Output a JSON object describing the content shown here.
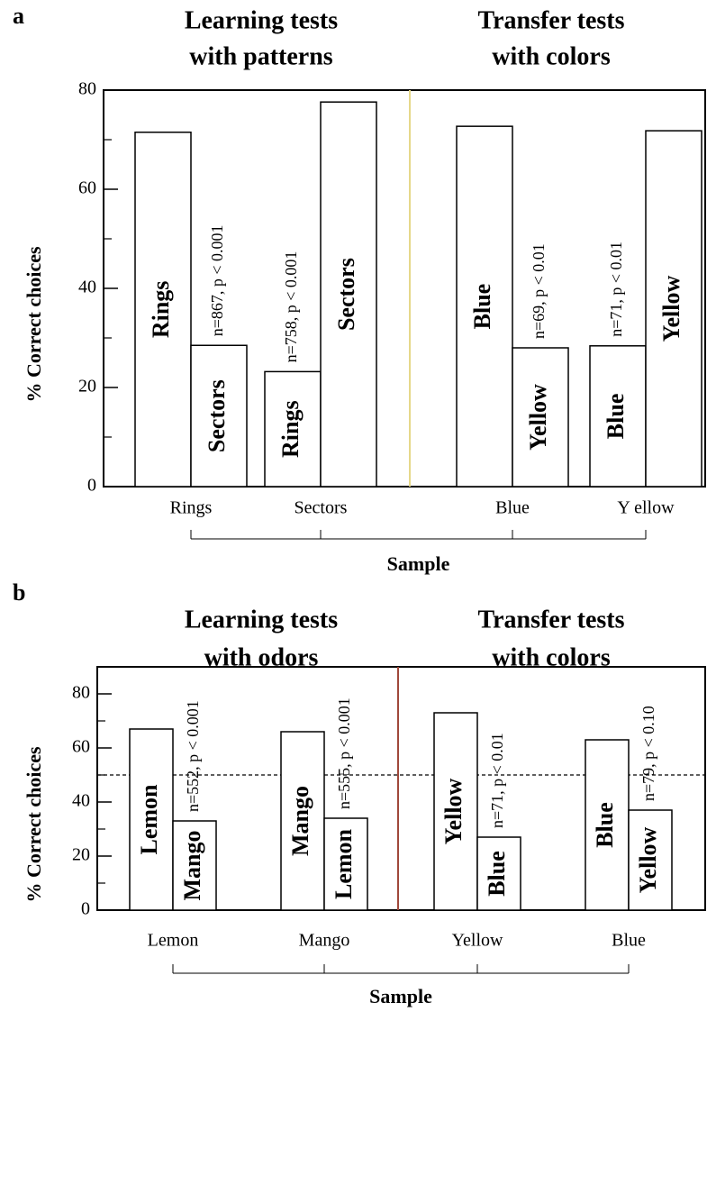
{
  "chart_data": [
    {
      "type": "bar",
      "panel": "a",
      "sections": [
        {
          "title_lines": [
            "Learning tests",
            "with patterns"
          ]
        },
        {
          "title_lines": [
            "Transfer tests",
            "with colors"
          ]
        }
      ],
      "y_label": "% Correct choices",
      "x_label": "Sample",
      "ylim": [
        0,
        80
      ],
      "yticks": [
        0,
        20,
        40,
        60,
        80
      ],
      "minor_yticks": [
        10,
        30,
        50,
        70
      ],
      "divider_color": "#e6d88a",
      "groups": [
        {
          "category": "Rings",
          "annotation": "n=867, p < 0.001",
          "bars": [
            {
              "label": "Rings",
              "value": 71.5
            },
            {
              "label": "Sectors",
              "value": 28.5
            }
          ]
        },
        {
          "category": "Sectors",
          "annotation": "n=758, p < 0.001",
          "bars": [
            {
              "label": "Rings",
              "value": 23.2
            },
            {
              "label": "Sectors",
              "value": 77.6
            }
          ]
        },
        {
          "category": "Blue",
          "annotation": "n=69, p < 0.01",
          "bars": [
            {
              "label": "Blue",
              "value": 72.7
            },
            {
              "label": "Yellow",
              "value": 28
            }
          ]
        },
        {
          "category": "Y ellow",
          "annotation": "n=71, p < 0.01",
          "bars": [
            {
              "label": "Blue",
              "value": 28.4
            },
            {
              "label": "Yellow",
              "value": 71.8
            }
          ]
        }
      ]
    },
    {
      "type": "bar",
      "panel": "b",
      "sections": [
        {
          "title_lines": [
            "Learning tests",
            "with odors"
          ]
        },
        {
          "title_lines": [
            "Transfer tests",
            "with colors"
          ]
        }
      ],
      "y_label": "% Correct choices",
      "x_label": "Sample",
      "ylim": [
        0,
        90
      ],
      "yticks": [
        0,
        20,
        40,
        60,
        80
      ],
      "minor_yticks": [
        10,
        30,
        50,
        70
      ],
      "reference_line": 50,
      "divider_color": "#a0483a",
      "groups": [
        {
          "category": "Lemon",
          "annotation": "n=552, p < 0.001",
          "bars": [
            {
              "label": "Lemon",
              "value": 67
            },
            {
              "label": "Mango",
              "value": 33
            }
          ]
        },
        {
          "category": "Mango",
          "annotation": "n=555, p < 0.001",
          "bars": [
            {
              "label": "Mango",
              "value": 66
            },
            {
              "label": "Lemon",
              "value": 34
            }
          ]
        },
        {
          "category": "Yellow",
          "annotation": "n=71, p < 0.01",
          "bars": [
            {
              "label": "Yellow",
              "value": 73
            },
            {
              "label": "Blue",
              "value": 27
            }
          ]
        },
        {
          "category": "Blue",
          "annotation": "n=79, p < 0.10",
          "bars": [
            {
              "label": "Blue",
              "value": 63
            },
            {
              "label": "Yellow",
              "value": 37
            }
          ]
        }
      ]
    }
  ]
}
